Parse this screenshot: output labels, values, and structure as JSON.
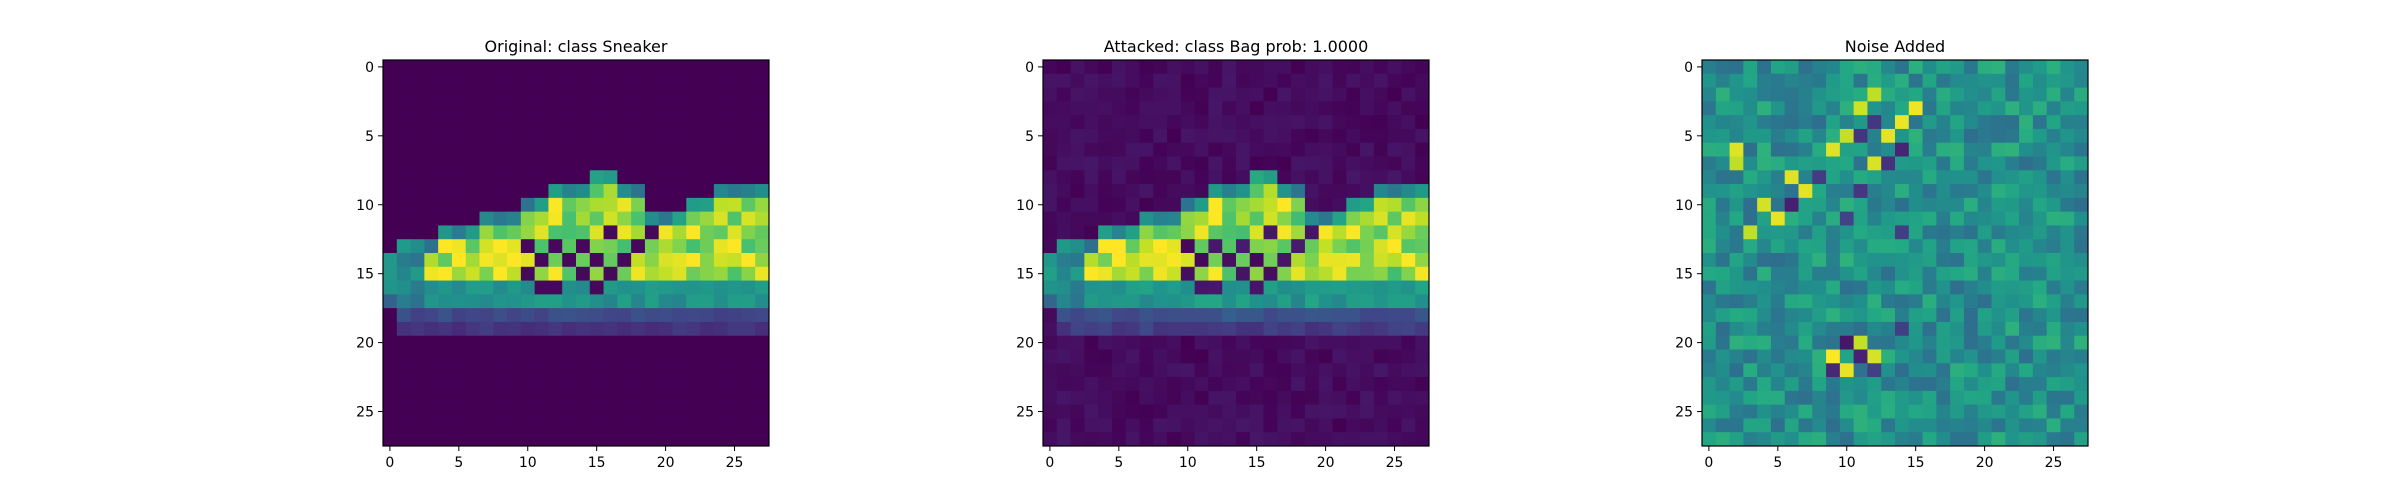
{
  "chart_data": [
    {
      "type": "heatmap",
      "title": "Original: class Sneaker",
      "colormap": "viridis",
      "value_range": [
        0,
        1
      ],
      "rows": 28,
      "cols": 28,
      "xticks": [
        0,
        5,
        10,
        15,
        20,
        25
      ],
      "yticks": [
        0,
        5,
        10,
        15,
        20,
        25
      ],
      "background": 0.0
    },
    {
      "type": "heatmap",
      "title": "Attacked: class Bag prob: 1.0000",
      "colormap": "viridis",
      "value_range": [
        0,
        1
      ],
      "rows": 28,
      "cols": 28,
      "xticks": [
        0,
        5,
        10,
        15,
        20,
        25
      ],
      "yticks": [
        0,
        5,
        10,
        15,
        20,
        25
      ],
      "background": 0.06
    },
    {
      "type": "heatmap",
      "title": "Noise Added",
      "colormap": "viridis",
      "value_range": [
        0,
        1
      ],
      "rows": 28,
      "cols": 28,
      "xticks": [
        0,
        5,
        10,
        15,
        20,
        25
      ],
      "yticks": [
        0,
        5,
        10,
        15,
        20,
        25
      ],
      "background": 0.5
    }
  ]
}
